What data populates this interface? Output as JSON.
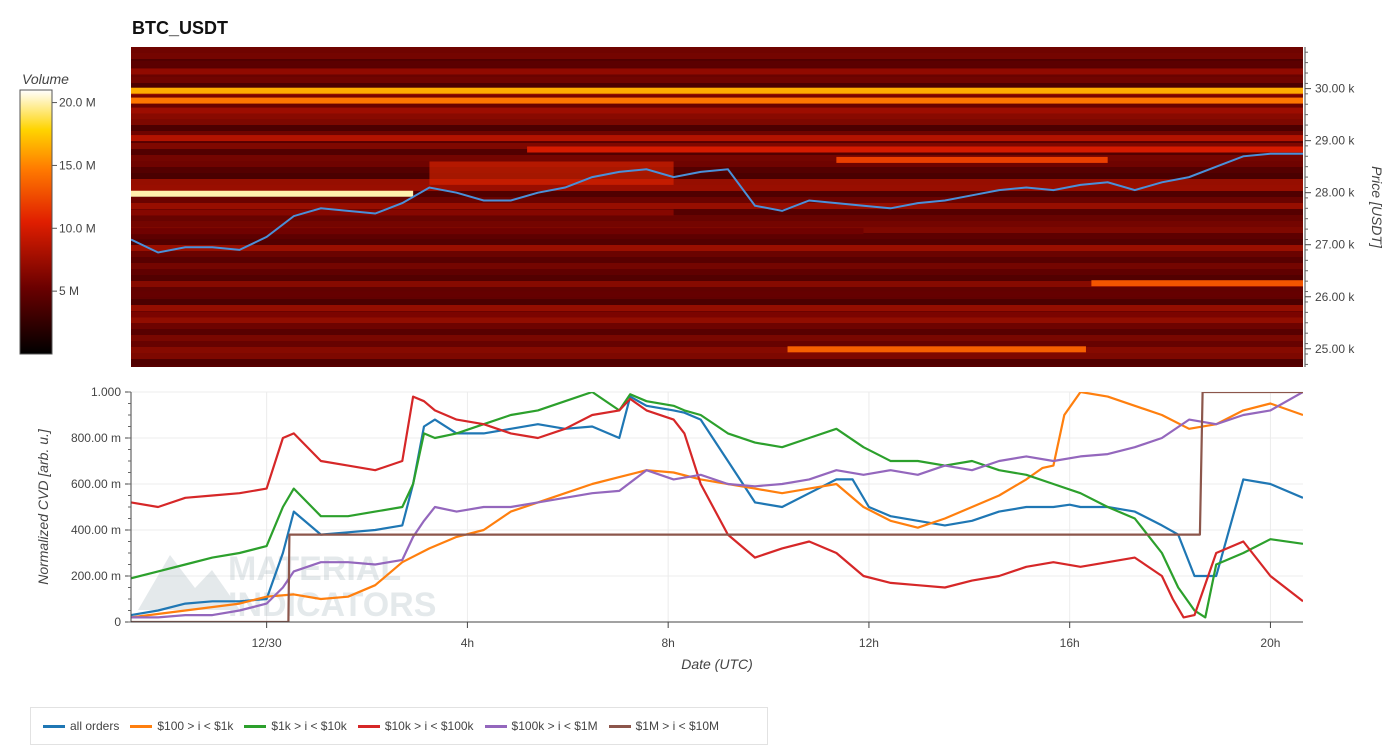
{
  "page": {
    "title": "BTC_USDT"
  },
  "watermark": {
    "line1": "MATERIAL",
    "line2": "INDICATORS"
  },
  "colors": {
    "all_orders": "#1f77b4",
    "s100_1k": "#ff7f0e",
    "s1k_10k": "#2ca02c",
    "s10k_100k": "#d62728",
    "s100k_1m": "#9467bd",
    "s1m_10m": "#8c564b",
    "price_line": "#4a90d9"
  },
  "chart_data": [
    {
      "type": "heatmap",
      "title": "BTC_USDT",
      "ylabel": "Price [USDT]",
      "ylim": [
        24650,
        30800
      ],
      "yticks": [
        {
          "value": 25000,
          "label": "25.00 k"
        },
        {
          "value": 26000,
          "label": "26.00 k"
        },
        {
          "value": 27000,
          "label": "27.00 k"
        },
        {
          "value": 28000,
          "label": "28.00 k"
        },
        {
          "value": 29000,
          "label": "29.00 k"
        },
        {
          "value": 30000,
          "label": "30.00 k"
        }
      ],
      "colorbar": {
        "label": "Volume",
        "range": [
          0,
          21000000
        ],
        "ticks": [
          {
            "value": 5000000,
            "label": "5 M"
          },
          {
            "value": 10000000,
            "label": "10.0 M"
          },
          {
            "value": 15000000,
            "label": "15.0 M"
          },
          {
            "value": 20000000,
            "label": "20.0 M"
          }
        ]
      },
      "bands": [
        {
          "price": 30480,
          "x0": 0.0,
          "x1": 21.6,
          "volume": 4500000
        },
        {
          "price": 30330,
          "x0": 0.0,
          "x1": 21.6,
          "volume": 7000000
        },
        {
          "price": 29960,
          "x0": 0.0,
          "x1": 21.6,
          "volume": 16500000
        },
        {
          "price": 29770,
          "x0": 0.0,
          "x1": 21.6,
          "volume": 14500000
        },
        {
          "price": 29580,
          "x0": 0.0,
          "x1": 21.6,
          "volume": 7500000
        },
        {
          "price": 29050,
          "x0": 0.0,
          "x1": 21.6,
          "volume": 8500000
        },
        {
          "price": 28830,
          "x0": 7.3,
          "x1": 21.6,
          "volume": 10000000
        },
        {
          "price": 28630,
          "x0": 13.0,
          "x1": 18.0,
          "volume": 12000000
        },
        {
          "price": 27980,
          "x0": 0.0,
          "x1": 5.2,
          "volume": 20000000
        },
        {
          "price": 27620,
          "x0": 0.0,
          "x1": 10.0,
          "volume": 6500000
        },
        {
          "price": 27260,
          "x0": 0.0,
          "x1": 13.5,
          "volume": 5500000
        },
        {
          "price": 26260,
          "x0": 17.7,
          "x1": 21.6,
          "volume": 13000000
        },
        {
          "price": 26050,
          "x0": 0.0,
          "x1": 21.6,
          "volume": 5000000
        },
        {
          "price": 25660,
          "x0": 0.0,
          "x1": 21.6,
          "volume": 6000000
        },
        {
          "price": 24990,
          "x0": 12.1,
          "x1": 17.6,
          "volume": 13500000
        }
      ],
      "price_series": {
        "x": [
          0,
          0.5,
          1.0,
          1.5,
          2.0,
          2.5,
          3.0,
          3.5,
          4.0,
          4.5,
          5.0,
          5.5,
          6.0,
          6.5,
          7.0,
          7.5,
          8.0,
          8.5,
          9.0,
          9.5,
          10.0,
          10.5,
          11.0,
          11.5,
          12.0,
          12.5,
          13.0,
          13.5,
          14.0,
          14.5,
          15.0,
          15.5,
          16.0,
          16.5,
          17.0,
          17.5,
          18.0,
          18.5,
          19.0,
          19.5,
          20.0,
          20.5,
          21.0,
          21.6
        ],
        "y": [
          27100,
          26850,
          26950,
          26950,
          26900,
          27150,
          27550,
          27700,
          27650,
          27600,
          27800,
          28100,
          28000,
          27850,
          27850,
          28000,
          28100,
          28300,
          28400,
          28450,
          28300,
          28400,
          28450,
          27750,
          27650,
          27850,
          27800,
          27750,
          27700,
          27800,
          27850,
          27950,
          28050,
          28100,
          28050,
          28150,
          28200,
          28050,
          28200,
          28300,
          28500,
          28700,
          28750,
          28750
        ]
      }
    },
    {
      "type": "line",
      "xlabel": "Date (UTC)",
      "ylabel": "Normalized CVD [arb. u.]",
      "xlim": [
        0,
        21.6
      ],
      "ylim": [
        0,
        1
      ],
      "xticks": [
        {
          "value": 2.5,
          "label": "12/30"
        },
        {
          "value": 6.2,
          "label": "4h"
        },
        {
          "value": 9.9,
          "label": "8h"
        },
        {
          "value": 13.6,
          "label": "12h"
        },
        {
          "value": 17.3,
          "label": "16h"
        },
        {
          "value": 21.0,
          "label": "20h"
        }
      ],
      "yticks": [
        {
          "value": 0,
          "label": "0"
        },
        {
          "value": 0.2,
          "label": "200.00 m"
        },
        {
          "value": 0.4,
          "label": "400.00 m"
        },
        {
          "value": 0.6,
          "label": "600.00 m"
        },
        {
          "value": 0.8,
          "label": "800.00 m"
        },
        {
          "value": 1.0,
          "label": "1.000"
        }
      ],
      "legend_position": "bottom",
      "series": [
        {
          "name": "all orders",
          "color_key": "all_orders",
          "x": [
            0,
            0.5,
            1.0,
            1.5,
            2.0,
            2.5,
            2.8,
            3.0,
            3.5,
            4.0,
            4.5,
            5.0,
            5.2,
            5.4,
            5.6,
            6.0,
            6.5,
            7.0,
            7.5,
            8.0,
            8.5,
            9.0,
            9.2,
            9.5,
            10.0,
            10.2,
            10.5,
            11.0,
            11.5,
            12.0,
            12.5,
            13.0,
            13.3,
            13.6,
            14.0,
            14.5,
            15.0,
            15.5,
            16.0,
            16.5,
            17.0,
            17.3,
            17.5,
            18.0,
            18.5,
            19.0,
            19.3,
            19.6,
            20.0,
            20.5,
            21.0,
            21.6
          ],
          "y": [
            0.03,
            0.05,
            0.08,
            0.09,
            0.09,
            0.1,
            0.3,
            0.48,
            0.38,
            0.39,
            0.4,
            0.42,
            0.6,
            0.85,
            0.88,
            0.82,
            0.82,
            0.84,
            0.86,
            0.84,
            0.85,
            0.8,
            0.98,
            0.94,
            0.92,
            0.91,
            0.88,
            0.7,
            0.52,
            0.5,
            0.56,
            0.62,
            0.62,
            0.5,
            0.46,
            0.44,
            0.42,
            0.44,
            0.48,
            0.5,
            0.5,
            0.51,
            0.5,
            0.5,
            0.48,
            0.42,
            0.38,
            0.2,
            0.2,
            0.62,
            0.6,
            0.54
          ]
        },
        {
          "name": "$100 > i < $1k",
          "color_key": "s100_1k",
          "x": [
            0,
            1.0,
            2.0,
            2.5,
            3.0,
            3.5,
            4.0,
            4.5,
            5.0,
            5.5,
            6.0,
            6.5,
            7.0,
            7.5,
            8.0,
            8.5,
            9.0,
            9.5,
            10.0,
            10.5,
            11.0,
            11.5,
            12.0,
            12.5,
            13.0,
            13.5,
            14.0,
            14.5,
            15.0,
            15.5,
            16.0,
            16.5,
            16.8,
            17.0,
            17.2,
            17.5,
            18.0,
            18.5,
            19.0,
            19.5,
            20.0,
            20.5,
            21.0,
            21.6
          ],
          "y": [
            0.02,
            0.05,
            0.08,
            0.11,
            0.12,
            0.1,
            0.11,
            0.16,
            0.26,
            0.32,
            0.37,
            0.4,
            0.48,
            0.52,
            0.56,
            0.6,
            0.63,
            0.66,
            0.65,
            0.62,
            0.6,
            0.58,
            0.56,
            0.58,
            0.6,
            0.5,
            0.44,
            0.41,
            0.45,
            0.5,
            0.55,
            0.62,
            0.67,
            0.68,
            0.9,
            1.0,
            0.98,
            0.94,
            0.9,
            0.84,
            0.86,
            0.92,
            0.95,
            0.9
          ]
        },
        {
          "name": "$1k > i < $10k",
          "color_key": "s1k_10k",
          "x": [
            0,
            0.5,
            1.0,
            1.5,
            2.0,
            2.5,
            2.8,
            3.0,
            3.5,
            4.0,
            4.5,
            5.0,
            5.2,
            5.4,
            5.6,
            6.0,
            6.5,
            7.0,
            7.5,
            8.0,
            8.5,
            9.0,
            9.2,
            9.5,
            10.0,
            10.2,
            10.5,
            11.0,
            11.5,
            12.0,
            12.5,
            13.0,
            13.5,
            14.0,
            14.5,
            15.0,
            15.5,
            16.0,
            16.5,
            17.0,
            17.5,
            18.0,
            18.5,
            19.0,
            19.3,
            19.6,
            19.8,
            20.0,
            20.5,
            21.0,
            21.6
          ],
          "y": [
            0.19,
            0.22,
            0.25,
            0.28,
            0.3,
            0.33,
            0.5,
            0.58,
            0.46,
            0.46,
            0.48,
            0.5,
            0.6,
            0.82,
            0.8,
            0.82,
            0.86,
            0.9,
            0.92,
            0.96,
            1.0,
            0.92,
            0.99,
            0.96,
            0.94,
            0.92,
            0.9,
            0.82,
            0.78,
            0.76,
            0.8,
            0.84,
            0.76,
            0.7,
            0.7,
            0.68,
            0.7,
            0.66,
            0.64,
            0.6,
            0.56,
            0.5,
            0.45,
            0.3,
            0.15,
            0.05,
            0.02,
            0.25,
            0.3,
            0.36,
            0.34
          ]
        },
        {
          "name": "$10k > i < $100k",
          "color_key": "s10k_100k",
          "x": [
            0,
            0.5,
            1.0,
            1.5,
            2.0,
            2.5,
            2.8,
            3.0,
            3.5,
            4.0,
            4.5,
            5.0,
            5.2,
            5.4,
            5.6,
            6.0,
            6.5,
            7.0,
            7.5,
            8.0,
            8.5,
            9.0,
            9.2,
            9.5,
            10.0,
            10.2,
            10.5,
            11.0,
            11.5,
            12.0,
            12.5,
            13.0,
            13.5,
            14.0,
            14.5,
            15.0,
            15.5,
            16.0,
            16.5,
            17.0,
            17.5,
            18.0,
            18.5,
            19.0,
            19.2,
            19.4,
            19.6,
            20.0,
            20.5,
            21.0,
            21.6
          ],
          "y": [
            0.52,
            0.5,
            0.54,
            0.55,
            0.56,
            0.58,
            0.8,
            0.82,
            0.7,
            0.68,
            0.66,
            0.7,
            0.98,
            0.96,
            0.92,
            0.88,
            0.86,
            0.82,
            0.8,
            0.84,
            0.9,
            0.92,
            0.97,
            0.92,
            0.88,
            0.82,
            0.6,
            0.38,
            0.28,
            0.32,
            0.35,
            0.3,
            0.2,
            0.17,
            0.16,
            0.15,
            0.18,
            0.2,
            0.24,
            0.26,
            0.24,
            0.26,
            0.28,
            0.2,
            0.1,
            0.02,
            0.03,
            0.3,
            0.35,
            0.2,
            0.09
          ]
        },
        {
          "name": "$100k > i < $1M",
          "color_key": "s100k_1m",
          "x": [
            0,
            0.5,
            1.0,
            1.5,
            2.0,
            2.5,
            2.8,
            3.0,
            3.5,
            4.0,
            4.5,
            5.0,
            5.2,
            5.4,
            5.6,
            6.0,
            6.5,
            7.0,
            7.5,
            8.0,
            8.5,
            9.0,
            9.5,
            10.0,
            10.5,
            11.0,
            11.5,
            12.0,
            12.5,
            13.0,
            13.5,
            14.0,
            14.5,
            15.0,
            15.5,
            16.0,
            16.5,
            17.0,
            17.5,
            18.0,
            18.5,
            19.0,
            19.5,
            20.0,
            20.5,
            21.0,
            21.6
          ],
          "y": [
            0.02,
            0.02,
            0.03,
            0.03,
            0.05,
            0.08,
            0.15,
            0.22,
            0.26,
            0.26,
            0.25,
            0.27,
            0.37,
            0.44,
            0.5,
            0.48,
            0.5,
            0.5,
            0.52,
            0.54,
            0.56,
            0.57,
            0.66,
            0.62,
            0.64,
            0.6,
            0.59,
            0.6,
            0.62,
            0.66,
            0.64,
            0.66,
            0.64,
            0.68,
            0.66,
            0.7,
            0.72,
            0.7,
            0.72,
            0.73,
            0.76,
            0.8,
            0.88,
            0.86,
            0.9,
            0.92,
            1.0
          ]
        },
        {
          "name": "$1M > i < $10M",
          "color_key": "s1m_10m",
          "x": [
            0,
            2.9,
            2.92,
            3.0,
            19.7,
            19.75,
            21.6
          ],
          "y": [
            0,
            0,
            0.38,
            0.38,
            0.38,
            1.0,
            1.0
          ]
        }
      ]
    }
  ]
}
